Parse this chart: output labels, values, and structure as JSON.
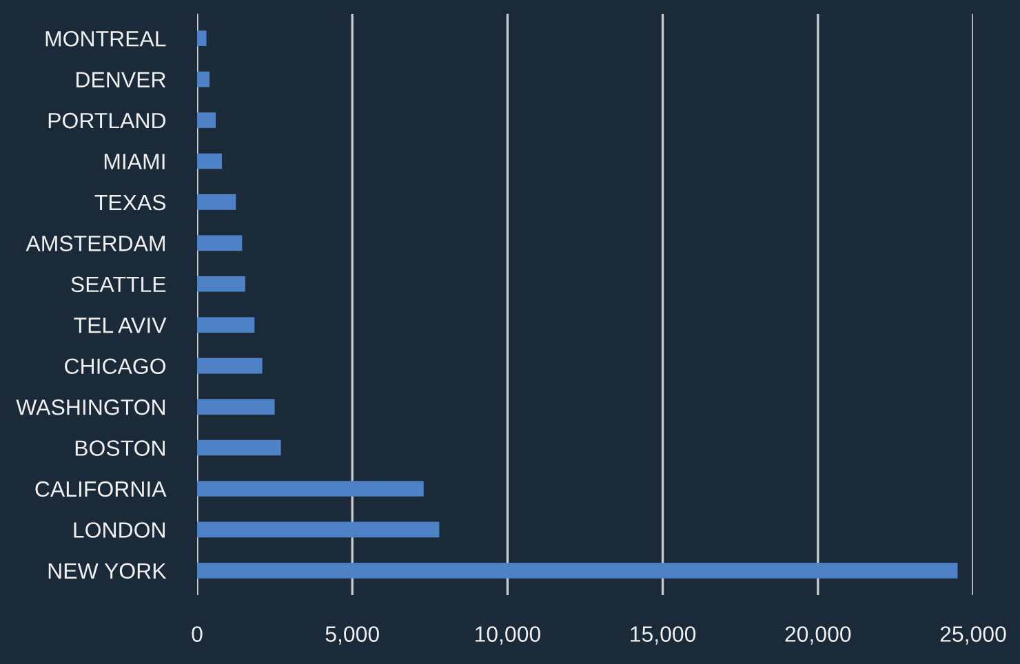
{
  "chart_data": {
    "type": "bar",
    "orientation": "horizontal",
    "categories": [
      "MONTREAL",
      "DENVER",
      "PORTLAND",
      "MIAMI",
      "TEXAS",
      "AMSTERDAM",
      "SEATTLE",
      "TEL AVIV",
      "CHICAGO",
      "WASHINGTON",
      "BOSTON",
      "CALIFORNIA",
      "LONDON",
      "NEW YORK"
    ],
    "values": [
      300,
      400,
      600,
      800,
      1250,
      1450,
      1550,
      1850,
      2100,
      2500,
      2700,
      7300,
      7800,
      24500
    ],
    "color": "#4f81c6",
    "xlim": [
      0,
      25000
    ],
    "xticks": [
      {
        "value": 0,
        "label": "0"
      },
      {
        "value": 5000,
        "label": "5,000"
      },
      {
        "value": 10000,
        "label": "10,000"
      },
      {
        "value": 15000,
        "label": "15,000"
      },
      {
        "value": 20000,
        "label": "20,000"
      },
      {
        "value": 25000,
        "label": "25,000"
      }
    ],
    "grid": "x",
    "legend": false
  }
}
